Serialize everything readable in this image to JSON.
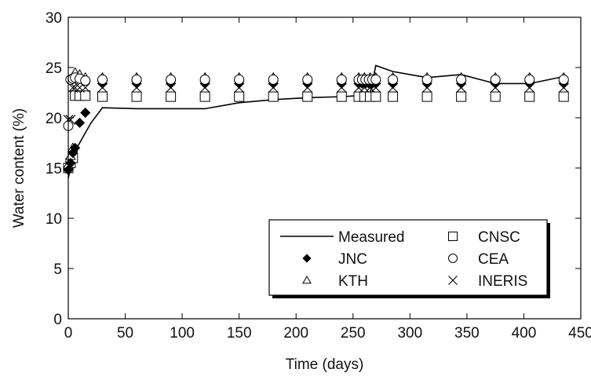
{
  "chart_data": {
    "type": "scatter",
    "xlabel": "Time (days)",
    "ylabel": "Water content (%)",
    "xlim": [
      0,
      450
    ],
    "ylim": [
      0,
      30
    ],
    "xticks": [
      0,
      50,
      100,
      150,
      200,
      250,
      300,
      350,
      400,
      450
    ],
    "yticks": [
      0,
      5,
      10,
      15,
      20,
      25,
      30
    ],
    "grid": false,
    "legend_position": "bottom-right",
    "series": [
      {
        "name": "Measured",
        "marker": "line",
        "color": "#000000",
        "x": [
          0,
          1,
          3,
          5,
          10,
          20,
          30,
          60,
          90,
          120,
          150,
          180,
          210,
          240,
          255,
          260,
          265,
          270,
          285,
          315,
          345,
          375,
          405,
          435
        ],
        "y": [
          14.0,
          14.5,
          15.5,
          16.5,
          17.5,
          19.5,
          21.0,
          20.9,
          20.9,
          20.9,
          21.5,
          21.8,
          22.0,
          22.1,
          22.2,
          22.3,
          22.4,
          25.2,
          24.6,
          24.0,
          24.3,
          23.4,
          23.4,
          24.1
        ]
      },
      {
        "name": "JNC",
        "marker": "diamond-filled",
        "color": "#000000",
        "x": [
          0,
          2,
          4,
          6,
          10,
          15,
          30,
          60,
          90,
          120,
          150,
          180,
          210,
          240,
          255,
          258,
          261,
          264,
          267,
          270,
          285,
          315,
          345,
          375,
          405,
          435
        ],
        "y": [
          14.8,
          15.5,
          16.5,
          17.0,
          19.5,
          20.5,
          23.4,
          23.4,
          23.4,
          23.4,
          23.4,
          23.4,
          23.4,
          23.4,
          23.4,
          23.4,
          23.4,
          23.4,
          23.4,
          23.4,
          23.4,
          23.4,
          23.4,
          23.4,
          23.4,
          23.4
        ]
      },
      {
        "name": "KTH",
        "marker": "triangle-open",
        "color": "#000000",
        "x": [
          0,
          2,
          4,
          6,
          10,
          15,
          30,
          60,
          90,
          120,
          150,
          180,
          210,
          240,
          255,
          260,
          265,
          270,
          285,
          315,
          345,
          375,
          405,
          435
        ],
        "y": [
          15.3,
          16.2,
          17.0,
          24.5,
          24.3,
          24.0,
          24.0,
          24.0,
          24.0,
          24.0,
          24.0,
          24.0,
          24.0,
          24.0,
          24.0,
          24.0,
          24.0,
          24.0,
          24.0,
          24.0,
          24.0,
          24.0,
          24.0,
          24.0
        ]
      },
      {
        "name": "CNSC",
        "marker": "square-open",
        "color": "#000000",
        "x": [
          0,
          2,
          4,
          6,
          10,
          15,
          30,
          60,
          90,
          120,
          150,
          180,
          210,
          240,
          255,
          260,
          265,
          270,
          285,
          315,
          345,
          375,
          405,
          435
        ],
        "y": [
          15.0,
          15.5,
          16.0,
          22.2,
          22.2,
          22.2,
          22.1,
          22.1,
          22.1,
          22.1,
          22.1,
          22.1,
          22.1,
          22.1,
          22.1,
          22.1,
          22.1,
          22.1,
          22.1,
          22.1,
          22.1,
          22.1,
          22.1,
          22.1
        ]
      },
      {
        "name": "CEA",
        "marker": "circle-open",
        "color": "#000000",
        "x": [
          0,
          2,
          4,
          6,
          10,
          15,
          30,
          60,
          90,
          120,
          150,
          180,
          210,
          240,
          255,
          258,
          261,
          264,
          267,
          270,
          285,
          315,
          345,
          375,
          405,
          435
        ],
        "y": [
          19.2,
          23.8,
          23.9,
          24.0,
          23.9,
          23.7,
          23.8,
          23.8,
          23.8,
          23.8,
          23.8,
          23.8,
          23.8,
          23.8,
          23.8,
          23.8,
          23.8,
          23.8,
          23.8,
          23.8,
          23.8,
          23.8,
          23.8,
          23.8,
          23.8,
          23.8
        ]
      },
      {
        "name": "INERIS",
        "marker": "x",
        "color": "#000000",
        "x": [
          0,
          2,
          4,
          6,
          10,
          15,
          30,
          60,
          90,
          120,
          150,
          180,
          210,
          240,
          255,
          260,
          265,
          270,
          285,
          315,
          345,
          375,
          405,
          435
        ],
        "y": [
          19.8,
          19.8,
          23.0,
          23.0,
          23.0,
          23.0,
          23.0,
          23.0,
          23.0,
          23.0,
          23.0,
          23.0,
          23.0,
          23.0,
          23.0,
          23.0,
          23.0,
          23.0,
          23.0,
          23.0,
          23.0,
          23.0,
          23.0,
          23.0
        ]
      }
    ],
    "legend": {
      "columns": [
        [
          "Measured",
          "JNC",
          "KTH"
        ],
        [
          "CNSC",
          "CEA",
          "INERIS"
        ]
      ]
    }
  }
}
